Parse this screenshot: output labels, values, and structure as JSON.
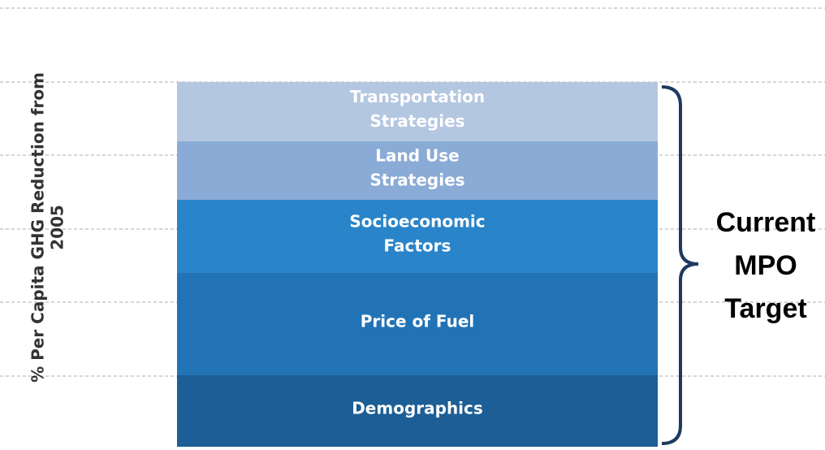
{
  "y_axis_label": [
    "% Per Capita GHG Reduction from",
    "2005"
  ],
  "segments": [
    {
      "lines": [
        "Transportation",
        "Strategies"
      ]
    },
    {
      "lines": [
        "Land Use",
        "Strategies"
      ]
    },
    {
      "lines": [
        "Socioeconomic",
        "Factors"
      ]
    },
    {
      "lines": [
        "Price of Fuel"
      ]
    },
    {
      "lines": [
        "Demographics"
      ]
    }
  ],
  "bracket_label": [
    "Current",
    "MPO",
    "Target"
  ]
}
